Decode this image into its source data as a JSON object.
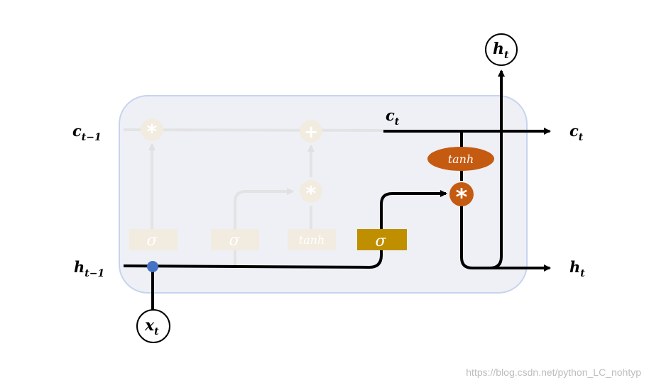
{
  "diagram": {
    "labels": {
      "c_prev_main": "c",
      "c_prev_sub": "t−1",
      "h_prev_main": "h",
      "h_prev_sub": "t−1",
      "c_t_inner_main": "c",
      "c_t_inner_sub": "t",
      "c_t_out_main": "c",
      "c_t_out_sub": "t",
      "h_t_out_main": "h",
      "h_t_out_sub": "t",
      "h_t_top_main": "h",
      "h_t_top_sub": "t",
      "x_t_main": "x",
      "x_t_sub": "t"
    },
    "faded_gates": {
      "forget_sigma": "σ",
      "input_sigma": "σ",
      "candidate_tanh": "tanh",
      "forget_mult": "*",
      "add_op": "+",
      "input_mult": "*"
    },
    "active_gates": {
      "output_sigma": "σ",
      "cell_tanh": "tanh",
      "output_mult": "*"
    },
    "watermark": "https://blog.csdn.net/python_LC_nohtyp",
    "colors": {
      "cell_fill": "#eef0f6",
      "cell_border": "#c7d4ee",
      "sigma_gold": "#bf8f00",
      "tanh_orange": "#c55a11",
      "faded_gate": "#f2ebe0",
      "faded_line": "#e3e3e3",
      "input_dot": "#4472c4"
    }
  }
}
